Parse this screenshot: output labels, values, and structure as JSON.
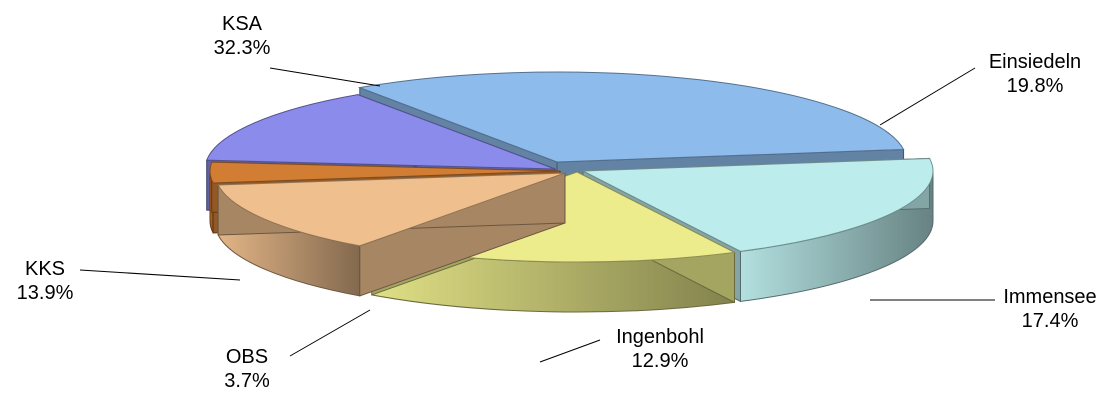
{
  "chart_data": {
    "type": "pie",
    "style": "3d-exploded",
    "title": "",
    "legend": "none",
    "unit": "%",
    "slices": [
      {
        "name": "KSA",
        "value": 32.3,
        "label": "32.3%",
        "color": "#8dbbec"
      },
      {
        "name": "Einsiedeln",
        "value": 19.8,
        "label": "19.8%",
        "color": "#bcecec"
      },
      {
        "name": "Immensee",
        "value": 17.4,
        "label": "17.4%",
        "color": "#ecec8c"
      },
      {
        "name": "Ingenbohl",
        "value": 12.9,
        "label": "12.9%",
        "color": "#efbf8e"
      },
      {
        "name": "OBS",
        "value": 3.7,
        "label": "3.7%",
        "color": "#d27d34"
      },
      {
        "name": "KKS",
        "value": 13.9,
        "label": "13.9%",
        "color": "#8b8bec"
      }
    ]
  }
}
